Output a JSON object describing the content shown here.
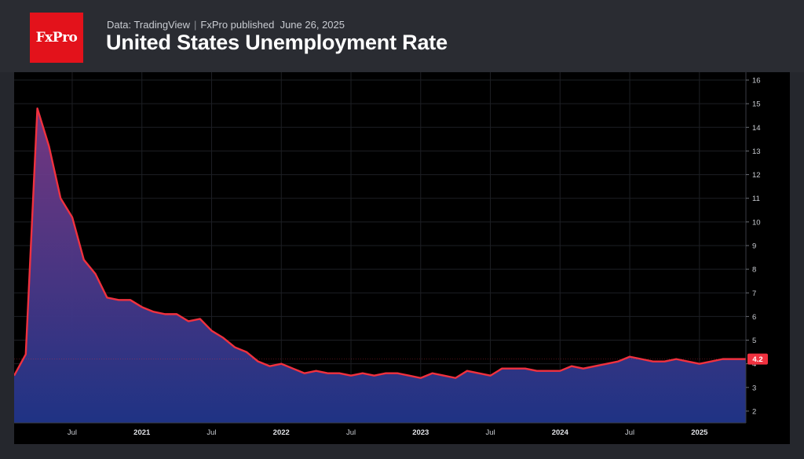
{
  "header": {
    "logo_text": "FxPro",
    "source": "Data: TradingView",
    "publisher": "FxPro published",
    "published_date": "June 26, 2025",
    "title": "United States Unemployment Rate"
  },
  "colors": {
    "line": "#f0313f",
    "fill_top": "#7a3a86",
    "fill_bottom": "#1f3384",
    "badge": "#f0313f"
  },
  "chart_data": {
    "type": "area",
    "title": "United States Unemployment Rate",
    "xlabel": "",
    "ylabel": "",
    "ylim": [
      1.5,
      16.2
    ],
    "y_ticks": [
      2,
      3,
      4,
      5,
      6,
      7,
      8,
      9,
      10,
      11,
      12,
      13,
      14,
      15,
      16
    ],
    "x_ticks": [
      {
        "label": "Jul",
        "date": "2020-07",
        "bold": false
      },
      {
        "label": "2021",
        "date": "2021-01",
        "bold": true
      },
      {
        "label": "Jul",
        "date": "2021-07",
        "bold": false
      },
      {
        "label": "2022",
        "date": "2022-01",
        "bold": true
      },
      {
        "label": "Jul",
        "date": "2022-07",
        "bold": false
      },
      {
        "label": "2023",
        "date": "2023-01",
        "bold": true
      },
      {
        "label": "Jul",
        "date": "2023-07",
        "bold": false
      },
      {
        "label": "2024",
        "date": "2024-01",
        "bold": true
      },
      {
        "label": "Jul",
        "date": "2024-07",
        "bold": false
      },
      {
        "label": "2025",
        "date": "2025-01",
        "bold": true
      }
    ],
    "grid": true,
    "last_value_label": "4.2",
    "series": [
      {
        "x": [
          "2020-02",
          "2020-03",
          "2020-04",
          "2020-05",
          "2020-06",
          "2020-07",
          "2020-08",
          "2020-09",
          "2020-10",
          "2020-11",
          "2020-12",
          "2021-01",
          "2021-02",
          "2021-03",
          "2021-04",
          "2021-05",
          "2021-06",
          "2021-07",
          "2021-08",
          "2021-09",
          "2021-10",
          "2021-11",
          "2021-12",
          "2022-01",
          "2022-02",
          "2022-03",
          "2022-04",
          "2022-05",
          "2022-06",
          "2022-07",
          "2022-08",
          "2022-09",
          "2022-10",
          "2022-11",
          "2022-12",
          "2023-01",
          "2023-02",
          "2023-03",
          "2023-04",
          "2023-05",
          "2023-06",
          "2023-07",
          "2023-08",
          "2023-09",
          "2023-10",
          "2023-11",
          "2023-12",
          "2024-01",
          "2024-02",
          "2024-03",
          "2024-04",
          "2024-05",
          "2024-06",
          "2024-07",
          "2024-08",
          "2024-09",
          "2024-10",
          "2024-11",
          "2024-12",
          "2025-01",
          "2025-02",
          "2025-03",
          "2025-04",
          "2025-05"
        ],
        "values": [
          3.5,
          4.4,
          14.8,
          13.2,
          11.0,
          10.2,
          8.4,
          7.8,
          6.8,
          6.7,
          6.7,
          6.4,
          6.2,
          6.1,
          6.1,
          5.8,
          5.9,
          5.4,
          5.1,
          4.7,
          4.5,
          4.1,
          3.9,
          4.0,
          3.8,
          3.6,
          3.7,
          3.6,
          3.6,
          3.5,
          3.6,
          3.5,
          3.6,
          3.6,
          3.5,
          3.4,
          3.6,
          3.5,
          3.4,
          3.7,
          3.6,
          3.5,
          3.8,
          3.8,
          3.8,
          3.7,
          3.7,
          3.7,
          3.9,
          3.8,
          3.9,
          4.0,
          4.1,
          4.3,
          4.2,
          4.1,
          4.1,
          4.2,
          4.1,
          4.0,
          4.1,
          4.2,
          4.2,
          4.2
        ]
      }
    ]
  }
}
